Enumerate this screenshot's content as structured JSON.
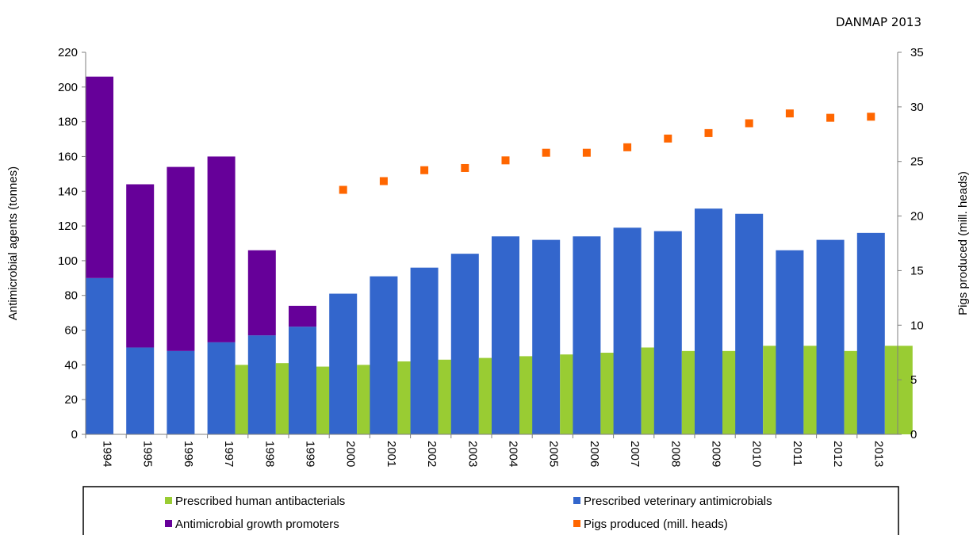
{
  "source_label": "DANMAP 2013",
  "legend": {
    "items": [
      {
        "key": "human",
        "label": "Prescribed human antibacterials"
      },
      {
        "key": "veterinary",
        "label": "Prescribed veterinary antimicrobials"
      },
      {
        "key": "growth",
        "label": "Antimicrobial growth promoters"
      },
      {
        "key": "pigs",
        "label": "Pigs produced (mill. heads)"
      }
    ]
  },
  "chart_data": {
    "type": "bar",
    "title": "",
    "ylabel": "Antimicrobial agents (tonnes)",
    "y2label": "Pigs  produced (mill. heads)",
    "xlabel": "",
    "ylim": [
      0,
      220
    ],
    "y2lim": [
      0,
      35
    ],
    "yticks": [
      0,
      20,
      40,
      60,
      80,
      100,
      120,
      140,
      160,
      180,
      200,
      220
    ],
    "y2ticks": [
      0,
      5,
      10,
      15,
      20,
      25,
      30,
      35
    ],
    "categories": [
      "1994",
      "1995",
      "1996",
      "1997",
      "1998",
      "1999",
      "2000",
      "2001",
      "2002",
      "2003",
      "2004",
      "2005",
      "2006",
      "2007",
      "2008",
      "2009",
      "2010",
      "2011",
      "2012",
      "2013"
    ],
    "series": [
      {
        "key": "veterinary",
        "name": "Prescribed veterinary antimicrobials",
        "kind": "bar-stack-base",
        "color": "#3366CC",
        "values": [
          90,
          50,
          48,
          53,
          57,
          62,
          81,
          91,
          96,
          104,
          114,
          112,
          114,
          119,
          117,
          130,
          127,
          106,
          112,
          116
        ]
      },
      {
        "key": "growth",
        "name": "Antimicrobial growth promoters",
        "kind": "bar-stack-top",
        "color": "#660099",
        "values": [
          116,
          94,
          106,
          107,
          49,
          12,
          0,
          0,
          0,
          0,
          0,
          0,
          0,
          0,
          0,
          0,
          0,
          0,
          0,
          0
        ]
      },
      {
        "key": "human",
        "name": "Prescribed human antibacterials",
        "kind": "bar",
        "color": "#99CC33",
        "values": [
          null,
          null,
          null,
          40,
          41,
          39,
          40,
          42,
          43,
          44,
          45,
          46,
          47,
          50,
          48,
          48,
          51,
          51,
          48,
          51
        ]
      },
      {
        "key": "pigs",
        "name": "Pigs produced (mill. heads)",
        "kind": "scatter-y2",
        "color": "#FF6600",
        "values": [
          null,
          null,
          null,
          null,
          null,
          null,
          22.4,
          23.2,
          24.2,
          24.4,
          25.1,
          25.8,
          25.8,
          26.3,
          27.1,
          27.6,
          28.5,
          29.4,
          29.0,
          29.1
        ]
      }
    ],
    "grid": false,
    "legend_position": "bottom"
  }
}
